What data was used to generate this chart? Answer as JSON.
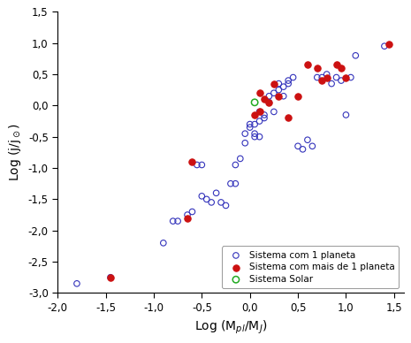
{
  "blue_x": [
    -1.8,
    -1.45,
    -0.9,
    -0.8,
    -0.75,
    -0.65,
    -0.6,
    -0.55,
    -0.5,
    -0.5,
    -0.45,
    -0.4,
    -0.35,
    -0.3,
    -0.25,
    -0.2,
    -0.15,
    -0.15,
    -0.1,
    -0.05,
    -0.05,
    0.0,
    0.0,
    0.05,
    0.05,
    0.05,
    0.1,
    0.1,
    0.1,
    0.15,
    0.15,
    0.2,
    0.2,
    0.25,
    0.25,
    0.3,
    0.3,
    0.35,
    0.35,
    0.4,
    0.4,
    0.45,
    0.5,
    0.55,
    0.6,
    0.65,
    0.7,
    0.75,
    0.8,
    0.85,
    0.9,
    0.95,
    1.0,
    1.05,
    1.1,
    1.4
  ],
  "blue_y": [
    -2.85,
    -2.75,
    -2.2,
    -1.85,
    -1.85,
    -1.75,
    -1.7,
    -0.95,
    -0.95,
    -1.45,
    -1.5,
    -1.55,
    -1.4,
    -1.55,
    -1.6,
    -1.25,
    -1.25,
    -0.95,
    -0.85,
    -0.6,
    -0.45,
    -0.35,
    -0.3,
    -0.3,
    -0.5,
    -0.45,
    -0.5,
    -0.25,
    -0.1,
    -0.15,
    -0.2,
    0.15,
    0.05,
    -0.1,
    0.2,
    0.25,
    0.35,
    0.15,
    0.3,
    0.35,
    0.4,
    0.45,
    -0.65,
    -0.7,
    -0.55,
    -0.65,
    0.45,
    0.45,
    0.5,
    0.35,
    0.45,
    0.4,
    -0.15,
    0.45,
    0.8,
    0.95
  ],
  "red_x": [
    -1.45,
    -0.65,
    -0.6,
    0.05,
    0.1,
    0.1,
    0.15,
    0.2,
    0.25,
    0.3,
    0.4,
    0.5,
    0.6,
    0.7,
    0.75,
    0.8,
    0.9,
    0.95,
    1.0,
    1.45
  ],
  "red_y": [
    -2.75,
    -1.8,
    -0.9,
    -0.15,
    -0.1,
    0.2,
    0.1,
    0.05,
    0.35,
    0.15,
    -0.2,
    0.15,
    0.65,
    0.6,
    0.4,
    0.45,
    0.65,
    0.6,
    0.45,
    0.98
  ],
  "green_x": [
    0.05
  ],
  "green_y": [
    0.05
  ],
  "xlabel": "Log (M$_{pl}$/M$_J$)",
  "ylabel": "Log (j/j$_\\odot$)",
  "xlim": [
    -2.0,
    1.6
  ],
  "ylim": [
    -3.0,
    1.5
  ],
  "xticks": [
    -2.0,
    -1.5,
    -1.0,
    -0.5,
    0.0,
    0.5,
    1.0,
    1.5
  ],
  "yticks": [
    -3.0,
    -2.5,
    -2.0,
    -1.5,
    -1.0,
    -0.5,
    0.0,
    0.5,
    1.0,
    1.5
  ],
  "legend_labels": [
    "Sistema com 1 planeta",
    "Sistema com mais de 1 planeta",
    "Sistema Solar"
  ],
  "blue_color": "#3333bb",
  "red_color": "#cc1111",
  "green_color": "#22aa22",
  "background_color": "#ffffff"
}
